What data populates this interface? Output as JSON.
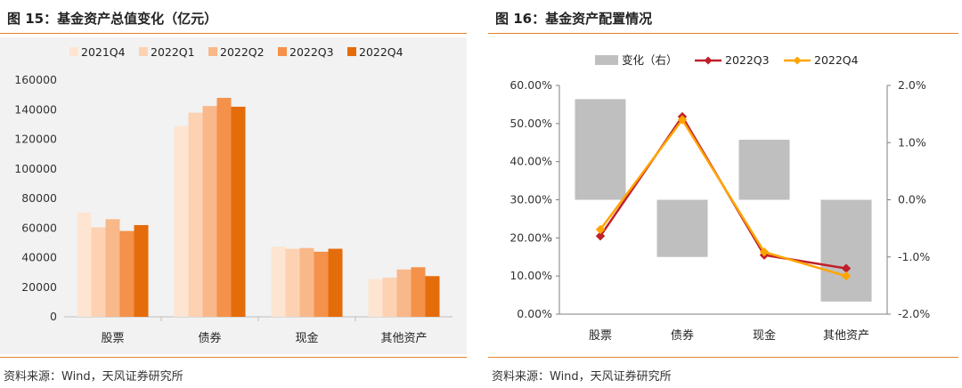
{
  "left": {
    "title": "图 15：基金资产总值变化（亿元）",
    "source": "资料来源：Wind，天风证券研究所",
    "chart_data": {
      "type": "bar",
      "categories": [
        "股票",
        "债券",
        "现金",
        "其他资产"
      ],
      "series": [
        {
          "name": "2021Q4",
          "values": [
            70500,
            129000,
            47500,
            25500
          ],
          "color": "#fde5d2"
        },
        {
          "name": "2022Q1",
          "values": [
            60500,
            138000,
            46000,
            26500
          ],
          "color": "#fcd2b3"
        },
        {
          "name": "2022Q2",
          "values": [
            66000,
            142500,
            46500,
            32000
          ],
          "color": "#f9b889"
        },
        {
          "name": "2022Q3",
          "values": [
            58000,
            148000,
            44000,
            33500
          ],
          "color": "#f4914a"
        },
        {
          "name": "2022Q4",
          "values": [
            62000,
            142000,
            46000,
            27500
          ],
          "color": "#e46c0a"
        }
      ],
      "ylim": [
        0,
        160000
      ],
      "yticks": [
        "0",
        "20000",
        "40000",
        "60000",
        "80000",
        "100000",
        "120000",
        "140000",
        "160000"
      ],
      "legend": "top"
    }
  },
  "right": {
    "title": "图 16：基金资产配置情况",
    "source": "资料来源：Wind，天风证券研究所",
    "chart_data": {
      "type": "bar+line",
      "categories": [
        "股票",
        "债券",
        "现金",
        "其他资产"
      ],
      "bars": {
        "name": "变化（右）",
        "values": [
          1.76,
          -1.0,
          1.05,
          -1.78
        ],
        "color": "#bfbfbf",
        "axis": "right"
      },
      "series": [
        {
          "name": "2022Q3",
          "values": [
            20.5,
            51.8,
            15.5,
            12.0
          ],
          "color": "#c0202a",
          "marker": "diamond"
        },
        {
          "name": "2022Q4",
          "values": [
            22.2,
            51.0,
            16.3,
            10.0
          ],
          "color": "#ffa500",
          "marker": "diamond"
        }
      ],
      "ylim_left": [
        0,
        60
      ],
      "yticks_left": [
        "0.00%",
        "10.00%",
        "20.00%",
        "30.00%",
        "40.00%",
        "50.00%",
        "60.00%"
      ],
      "ylim_right": [
        -2.0,
        2.0
      ],
      "yticks_right": [
        "-2.0%",
        "-1.0%",
        "0.0%",
        "1.0%",
        "2.0%"
      ],
      "legend": "top"
    }
  }
}
